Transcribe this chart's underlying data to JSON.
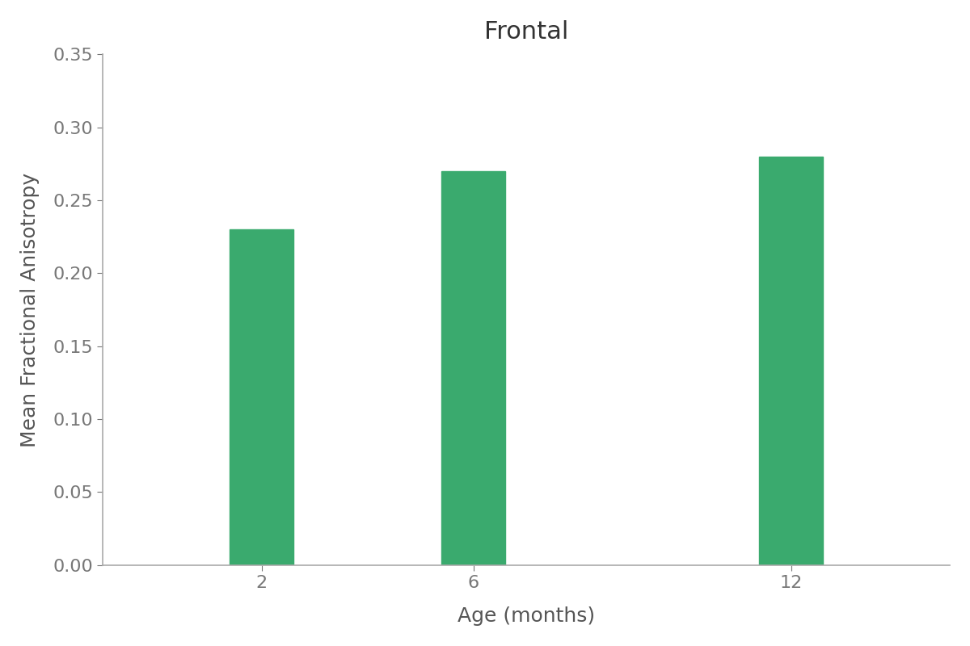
{
  "title": "Frontal",
  "categories": [
    2,
    6,
    12
  ],
  "values": [
    0.23,
    0.27,
    0.28
  ],
  "bar_color": "#3aaa6e",
  "xlabel": "Age (months)",
  "ylabel": "Mean Fractional Anisotropy",
  "ylim": [
    0.0,
    0.35
  ],
  "xlim": [
    -1,
    15
  ],
  "yticks": [
    0.0,
    0.05,
    0.1,
    0.15,
    0.2,
    0.25,
    0.3,
    0.35
  ],
  "title_fontsize": 22,
  "axis_label_fontsize": 18,
  "tick_fontsize": 16,
  "bar_width": 1.2,
  "background_color": "#ffffff",
  "spine_color": "#aaaaaa",
  "tick_color": "#777777",
  "label_color": "#555555"
}
